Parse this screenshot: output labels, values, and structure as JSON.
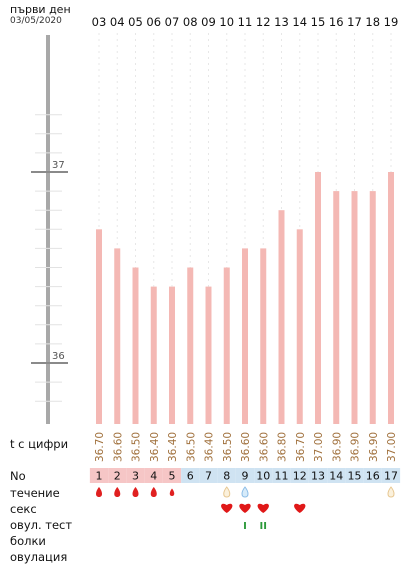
{
  "header": {
    "title": "първи ден",
    "date": "03/05/2020"
  },
  "row_labels": {
    "temps": "t с цифри",
    "no": "No",
    "bleeding": "течение",
    "sex": "секс",
    "ovu_test": "овул. тест",
    "pain": "болки",
    "ovulation": "овулация"
  },
  "colors": {
    "bar": "#f4b8b4",
    "temp_text": "#a0703c",
    "axis": "#a8a8a8",
    "no_period_bg": "#f6c6c6",
    "no_other_bg": "#cfe3f2",
    "blood": "#e02020",
    "heart": "#e01818",
    "test": "#2c9a3a",
    "water": "#8bbce6",
    "beige_drop": "#e6c690"
  },
  "chart_data": {
    "type": "bar",
    "categories": [
      "03",
      "04",
      "05",
      "06",
      "07",
      "08",
      "09",
      "10",
      "11",
      "12",
      "13",
      "14",
      "15",
      "16",
      "17",
      "18",
      "19"
    ],
    "values": [
      36.7,
      36.6,
      36.5,
      36.4,
      36.4,
      36.5,
      36.4,
      36.5,
      36.6,
      36.6,
      36.8,
      36.7,
      37.0,
      36.9,
      36.9,
      36.9,
      37.0
    ],
    "value_labels": [
      "36.70",
      "36.60",
      "36.50",
      "36.40",
      "36.40",
      "36.50",
      "36.40",
      "36.50",
      "36.60",
      "36.60",
      "36.80",
      "36.70",
      "37.00",
      "36.90",
      "36.90",
      "36.90",
      "37.00"
    ],
    "y_ticks": [
      "37",
      "36"
    ],
    "ylim": [
      35.65,
      37.65
    ],
    "title": "",
    "xlabel": "",
    "ylabel": ""
  },
  "cycle_days": [
    "1",
    "2",
    "3",
    "4",
    "5",
    "6",
    "7",
    "8",
    "9",
    "10",
    "11",
    "12",
    "13",
    "14",
    "15",
    "16",
    "17"
  ],
  "period_days_count": 5,
  "bleeding": [
    "blood",
    "blood",
    "blood",
    "blood",
    "blood-small",
    "",
    "",
    "beige-drop",
    "water-drop",
    "",
    "",
    "",
    "",
    "",
    "",
    "",
    "beige-drop"
  ],
  "sex": [
    false,
    false,
    false,
    false,
    false,
    false,
    false,
    true,
    true,
    true,
    false,
    true,
    false,
    false,
    false,
    false,
    false
  ],
  "ovu_test": [
    "",
    "",
    "",
    "",
    "",
    "",
    "",
    "",
    "I",
    "II",
    "",
    "",
    "",
    "",
    "",
    "",
    ""
  ]
}
